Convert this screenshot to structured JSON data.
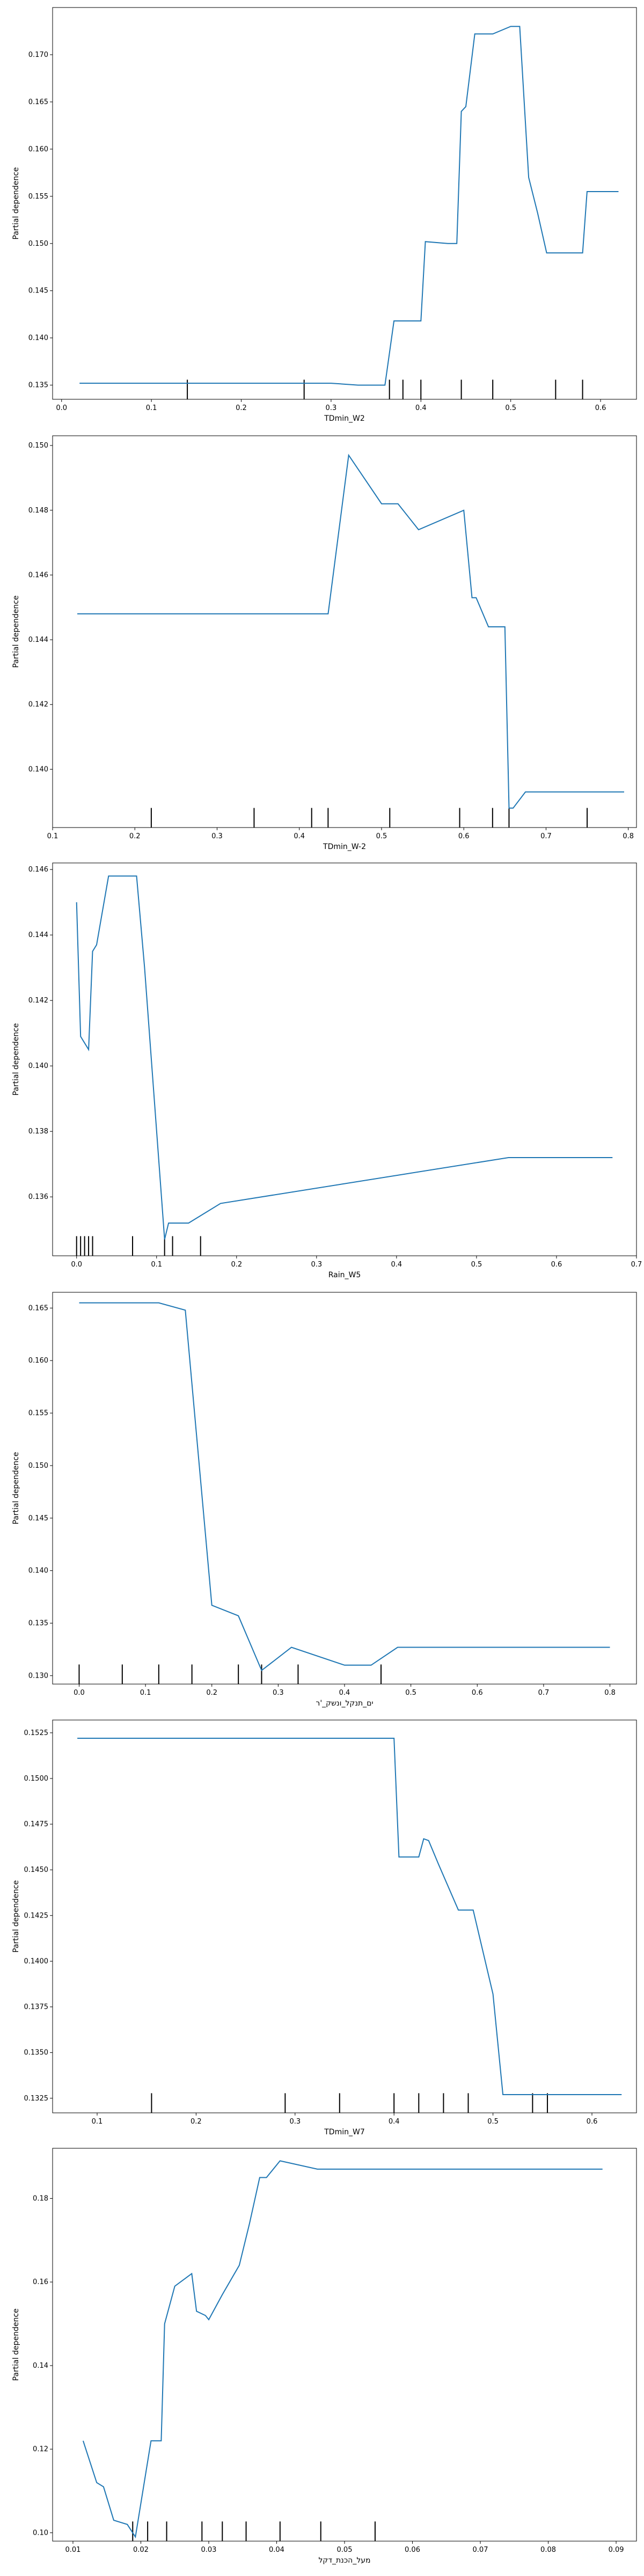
{
  "chart_data": [
    {
      "type": "line",
      "xlabel": "TDmin_W2",
      "ylabel": "Partial dependence",
      "xlim": [
        -0.01,
        0.64
      ],
      "ylim": [
        0.1335,
        0.175
      ],
      "xticks": [
        0.0,
        0.1,
        0.2,
        0.3,
        0.4,
        0.5,
        0.6
      ],
      "xtick_labels": [
        "0.0",
        "0.1",
        "0.2",
        "0.3",
        "0.4",
        "0.5",
        "0.6"
      ],
      "yticks": [
        0.135,
        0.14,
        0.145,
        0.15,
        0.155,
        0.16,
        0.165,
        0.17
      ],
      "ytick_labels": [
        "0.135",
        "0.140",
        "0.145",
        "0.150",
        "0.155",
        "0.160",
        "0.165",
        "0.170"
      ],
      "x": [
        0.02,
        0.14,
        0.27,
        0.3,
        0.33,
        0.36,
        0.37,
        0.38,
        0.4,
        0.405,
        0.43,
        0.44,
        0.445,
        0.45,
        0.46,
        0.48,
        0.5,
        0.51,
        0.52,
        0.53,
        0.54,
        0.56,
        0.58,
        0.585,
        0.6,
        0.62
      ],
      "y": [
        0.1352,
        0.1352,
        0.1352,
        0.1352,
        0.135,
        0.135,
        0.1418,
        0.1418,
        0.1418,
        0.1502,
        0.15,
        0.15,
        0.164,
        0.1645,
        0.1722,
        0.1722,
        0.173,
        0.173,
        0.157,
        0.1532,
        0.149,
        0.149,
        0.149,
        0.1555,
        0.1555,
        0.1555
      ],
      "rug": [
        0.14,
        0.27,
        0.365,
        0.38,
        0.4,
        0.445,
        0.48,
        0.55,
        0.58
      ]
    },
    {
      "type": "line",
      "xlabel": "TDmin_W-2",
      "ylabel": "Partial dependence",
      "xlim": [
        0.1,
        0.81
      ],
      "ylim": [
        0.1382,
        0.1503
      ],
      "xticks": [
        0.1,
        0.2,
        0.3,
        0.4,
        0.5,
        0.6,
        0.7,
        0.8
      ],
      "xtick_labels": [
        "0.1",
        "0.2",
        "0.3",
        "0.4",
        "0.5",
        "0.6",
        "0.7",
        "0.8"
      ],
      "yticks": [
        0.14,
        0.142,
        0.144,
        0.146,
        0.148,
        0.15
      ],
      "ytick_labels": [
        "0.140",
        "0.142",
        "0.144",
        "0.146",
        "0.148",
        "0.150"
      ],
      "x": [
        0.13,
        0.22,
        0.345,
        0.42,
        0.435,
        0.46,
        0.5,
        0.52,
        0.545,
        0.6,
        0.61,
        0.615,
        0.63,
        0.635,
        0.65,
        0.655,
        0.66,
        0.675,
        0.7,
        0.795
      ],
      "y": [
        0.1448,
        0.1448,
        0.1448,
        0.1448,
        0.1448,
        0.1497,
        0.1482,
        0.1482,
        0.1474,
        0.148,
        0.1453,
        0.1453,
        0.1444,
        0.1444,
        0.1444,
        0.1388,
        0.1388,
        0.1393,
        0.1393,
        0.1393
      ],
      "rug": [
        0.22,
        0.345,
        0.415,
        0.435,
        0.51,
        0.595,
        0.635,
        0.655,
        0.75
      ]
    },
    {
      "type": "line",
      "xlabel": "Rain_W5",
      "ylabel": "Partial dependence",
      "xlim": [
        -0.03,
        0.7
      ],
      "ylim": [
        0.1342,
        0.1462
      ],
      "xticks": [
        0.0,
        0.1,
        0.2,
        0.3,
        0.4,
        0.5,
        0.6,
        0.7
      ],
      "xtick_labels": [
        "0.0",
        "0.1",
        "0.2",
        "0.3",
        "0.4",
        "0.5",
        "0.6",
        "0.7"
      ],
      "yticks": [
        0.136,
        0.138,
        0.14,
        0.142,
        0.144,
        0.146
      ],
      "ytick_labels": [
        "0.136",
        "0.138",
        "0.140",
        "0.142",
        "0.144",
        "0.146"
      ],
      "x": [
        0.0,
        0.005,
        0.015,
        0.02,
        0.025,
        0.04,
        0.055,
        0.075,
        0.085,
        0.11,
        0.115,
        0.12,
        0.14,
        0.18,
        0.54,
        0.67
      ],
      "y": [
        0.145,
        0.1409,
        0.1405,
        0.1435,
        0.1437,
        0.1458,
        0.1458,
        0.1458,
        0.143,
        0.1347,
        0.1352,
        0.1352,
        0.1352,
        0.1358,
        0.1372,
        0.1372
      ],
      "rug": [
        0.0,
        0.005,
        0.01,
        0.015,
        0.02,
        0.07,
        0.11,
        0.12,
        0.155
      ]
    },
    {
      "type": "line",
      "xlabel": "ים_תנקל_ונשק_'ר",
      "ylabel": "Partial dependence",
      "xlim": [
        -0.04,
        0.84
      ],
      "ylim": [
        0.1292,
        0.1665
      ],
      "xticks": [
        0.0,
        0.1,
        0.2,
        0.3,
        0.4,
        0.5,
        0.6,
        0.7,
        0.8
      ],
      "xtick_labels": [
        "0.0",
        "0.1",
        "0.2",
        "0.3",
        "0.4",
        "0.5",
        "0.6",
        "0.7",
        "0.8"
      ],
      "yticks": [
        0.13,
        0.135,
        0.14,
        0.145,
        0.15,
        0.155,
        0.16,
        0.165
      ],
      "ytick_labels": [
        "0.130",
        "0.135",
        "0.140",
        "0.145",
        "0.150",
        "0.155",
        "0.160",
        "0.165"
      ],
      "x": [
        0.0,
        0.06,
        0.12,
        0.16,
        0.2,
        0.24,
        0.275,
        0.32,
        0.4,
        0.44,
        0.48,
        0.6,
        0.8
      ],
      "y": [
        0.1655,
        0.1655,
        0.1655,
        0.1648,
        0.1367,
        0.1357,
        0.1305,
        0.1327,
        0.131,
        0.131,
        0.1327,
        0.1327,
        0.1327
      ],
      "rug": [
        0.0,
        0.065,
        0.12,
        0.17,
        0.24,
        0.275,
        0.33,
        0.455
      ]
    },
    {
      "type": "line",
      "xlabel": "TDmin_W7",
      "ylabel": "Partial dependence",
      "xlim": [
        0.055,
        0.645
      ],
      "ylim": [
        0.1317,
        0.1532
      ],
      "xticks": [
        0.1,
        0.2,
        0.3,
        0.4,
        0.5,
        0.6
      ],
      "xtick_labels": [
        "0.1",
        "0.2",
        "0.3",
        "0.4",
        "0.5",
        "0.6"
      ],
      "yticks": [
        0.1325,
        0.135,
        0.1375,
        0.14,
        0.1425,
        0.145,
        0.1475,
        0.15,
        0.1525
      ],
      "ytick_labels": [
        "0.1325",
        "0.1350",
        "0.1375",
        "0.1400",
        "0.1425",
        "0.1450",
        "0.1475",
        "0.1500",
        "0.1525"
      ],
      "x": [
        0.08,
        0.16,
        0.29,
        0.345,
        0.4,
        0.405,
        0.425,
        0.43,
        0.435,
        0.445,
        0.465,
        0.48,
        0.5,
        0.51,
        0.545,
        0.555,
        0.63
      ],
      "y": [
        0.1522,
        0.1522,
        0.1522,
        0.1522,
        0.1522,
        0.1457,
        0.1457,
        0.1467,
        0.1466,
        0.1453,
        0.1428,
        0.1428,
        0.1382,
        0.1327,
        0.1327,
        0.1327,
        0.1327
      ],
      "rug": [
        0.155,
        0.29,
        0.345,
        0.4,
        0.425,
        0.45,
        0.475,
        0.54,
        0.555
      ]
    },
    {
      "type": "line",
      "xlabel": "מעל_הכנת_דקל",
      "ylabel": "Partial dependence",
      "xlim": [
        0.007,
        0.093
      ],
      "ylim": [
        0.098,
        0.192
      ],
      "xticks": [
        0.01,
        0.02,
        0.03,
        0.04,
        0.05,
        0.06,
        0.07,
        0.08,
        0.09
      ],
      "xtick_labels": [
        "0.01",
        "0.02",
        "0.03",
        "0.04",
        "0.05",
        "0.06",
        "0.07",
        "0.08",
        "0.09"
      ],
      "yticks": [
        0.1,
        0.12,
        0.14,
        0.16,
        0.18
      ],
      "ytick_labels": [
        "0.10",
        "0.12",
        "0.14",
        "0.16",
        "0.18"
      ],
      "x": [
        0.0115,
        0.0135,
        0.0145,
        0.016,
        0.018,
        0.0192,
        0.0215,
        0.023,
        0.0235,
        0.025,
        0.0275,
        0.0282,
        0.0295,
        0.03,
        0.032,
        0.0345,
        0.036,
        0.0375,
        0.0385,
        0.0405,
        0.046,
        0.055,
        0.07,
        0.088
      ],
      "y": [
        0.122,
        0.112,
        0.111,
        0.103,
        0.102,
        0.099,
        0.122,
        0.122,
        0.15,
        0.159,
        0.162,
        0.153,
        0.152,
        0.151,
        0.157,
        0.164,
        0.174,
        0.185,
        0.185,
        0.189,
        0.187,
        0.187,
        0.187,
        0.187
      ],
      "rug": [
        0.0188,
        0.021,
        0.0238,
        0.029,
        0.032,
        0.0355,
        0.0405,
        0.0465,
        0.0545
      ]
    }
  ]
}
